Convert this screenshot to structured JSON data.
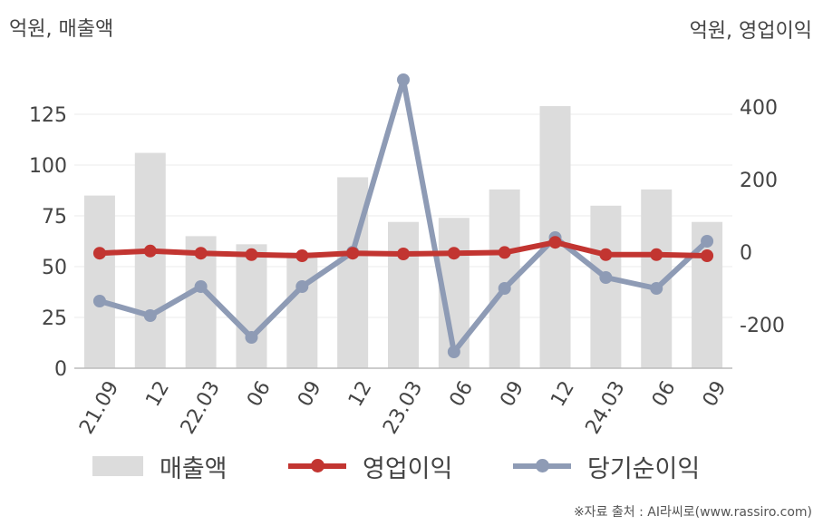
{
  "unit_left": "억원, 매출액",
  "unit_right": "억원, 영업이익",
  "source": "※자료 출처 : AI라씨로(www.rassiro.com)",
  "legend": {
    "revenue": "매출액",
    "operating_profit": "영업이익",
    "net_income": "당기순이익"
  },
  "colors": {
    "revenue": "#dcdcdc",
    "operating_profit": "#c23531",
    "net_income": "#8e9bb5",
    "grid": "#ebebeb",
    "axis": "#bbbbbb",
    "text": "#444444"
  },
  "chart_data": {
    "type": "bar",
    "categories": [
      "21.09",
      "12",
      "22.03",
      "06",
      "09",
      "12",
      "23.03",
      "06",
      "09",
      "12",
      "24.03",
      "06",
      "09"
    ],
    "y_left": {
      "label": "억원, 매출액",
      "range": [
        0,
        150
      ],
      "ticks": [
        0,
        25,
        50,
        75,
        100,
        125
      ]
    },
    "y_right": {
      "label": "억원, 영업이익",
      "range": [
        -320,
        520
      ],
      "ticks": [
        -200,
        0,
        200,
        400
      ]
    },
    "grid": true,
    "legend_position": "bottom",
    "series": [
      {
        "name": "매출액",
        "type": "bar",
        "axis": "left",
        "values": [
          85,
          106,
          65,
          61,
          57,
          94,
          72,
          74,
          88,
          129,
          80,
          88,
          72
        ]
      },
      {
        "name": "영업이익",
        "type": "line",
        "axis": "right",
        "values": [
          -3,
          3,
          -3,
          -7,
          -10,
          -3,
          -5,
          -3,
          -1,
          27,
          -7,
          -7,
          -10
        ]
      },
      {
        "name": "당기순이익",
        "type": "line",
        "axis": "right",
        "values": [
          -135,
          -175,
          -95,
          -235,
          -95,
          0,
          475,
          -275,
          -100,
          40,
          -70,
          -100,
          30
        ]
      }
    ]
  }
}
